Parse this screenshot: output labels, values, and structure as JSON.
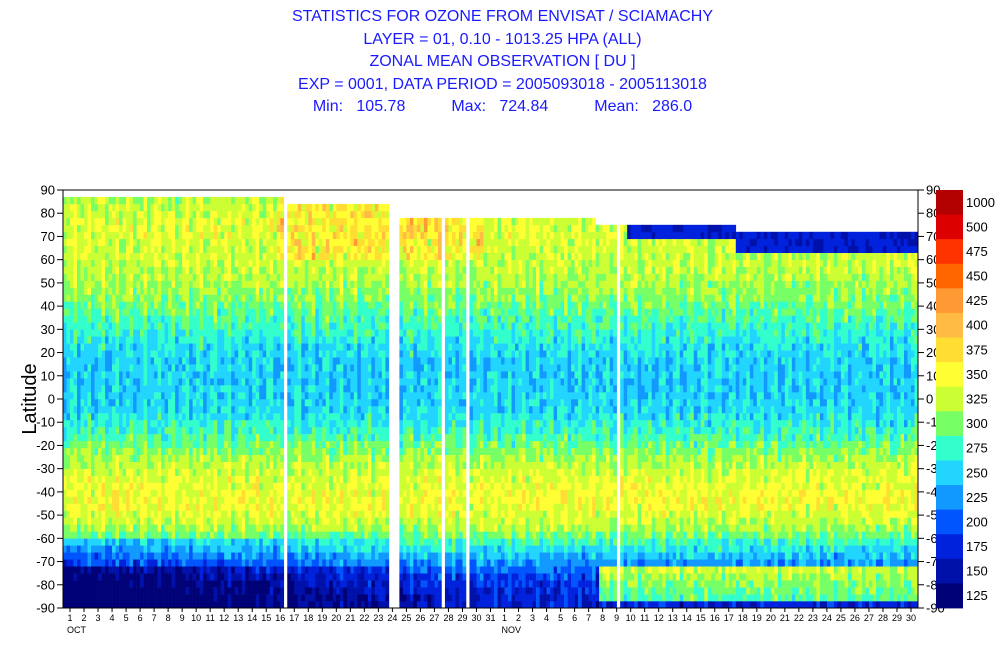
{
  "titles": {
    "line1": "STATISTICS FOR OZONE FROM ENVISAT / SCIAMACHY",
    "line2": "LAYER = 01, 0.10 - 1013.25 HPA (ALL)",
    "line3": "ZONAL MEAN OBSERVATION [ DU ]",
    "line4": "EXP = 0001, DATA PERIOD = 2005093018 - 2005113018",
    "min_label": "Min:",
    "min_value": "105.78",
    "max_label": "Max:",
    "max_value": "724.84",
    "mean_label": "Mean:",
    "mean_value": "286.0"
  },
  "colors": {
    "title": "#1a1aff",
    "weekend_tick": "#ff0000"
  },
  "chart_data": {
    "type": "heatmap",
    "ylabel": "Latitude",
    "ylim": [
      -90,
      90
    ],
    "yticks": [
      90,
      80,
      70,
      60,
      50,
      40,
      30,
      20,
      10,
      0,
      -10,
      -20,
      -30,
      -40,
      -50,
      -60,
      -70,
      -80,
      -90
    ],
    "x_days": [
      "1",
      "2",
      "3",
      "4",
      "5",
      "6",
      "7",
      "8",
      "9",
      "10",
      "11",
      "12",
      "13",
      "14",
      "15",
      "16",
      "17",
      "18",
      "19",
      "20",
      "21",
      "22",
      "23",
      "24",
      "25",
      "26",
      "27",
      "28",
      "29",
      "30",
      "31",
      "1",
      "2",
      "3",
      "4",
      "5",
      "6",
      "7",
      "8",
      "9",
      "10",
      "11",
      "12",
      "13",
      "14",
      "15",
      "16",
      "17",
      "18",
      "19",
      "20",
      "21",
      "22",
      "23",
      "24",
      "25",
      "26",
      "27",
      "28",
      "29",
      "30"
    ],
    "x_red_day_indexes": [
      1,
      8,
      15,
      22,
      29,
      36,
      43,
      50,
      57
    ],
    "month_labels": [
      {
        "label": "OCT",
        "day_index": 0
      },
      {
        "label": "NOV",
        "day_index": 31
      }
    ],
    "colorbar": {
      "labels": [
        "1000",
        "500",
        "475",
        "450",
        "425",
        "400",
        "375",
        "350",
        "325",
        "300",
        "275",
        "250",
        "225",
        "200",
        "175",
        "150",
        "125"
      ],
      "colors": [
        "#b30000",
        "#dd0000",
        "#ff3300",
        "#ff6600",
        "#ff9933",
        "#ffbb44",
        "#ffdd33",
        "#ffff33",
        "#ccff33",
        "#77ff66",
        "#33ffcc",
        "#22d5ff",
        "#1199ff",
        "#0055ff",
        "#0022dd",
        "#0011aa",
        "#000077"
      ]
    },
    "zonal_profile": [
      {
        "lat": -85,
        "value": 160
      },
      {
        "lat": -75,
        "value": 190
      },
      {
        "lat": -65,
        "value": 250
      },
      {
        "lat": -55,
        "value": 310
      },
      {
        "lat": -45,
        "value": 340
      },
      {
        "lat": -35,
        "value": 330
      },
      {
        "lat": -25,
        "value": 305
      },
      {
        "lat": -15,
        "value": 270
      },
      {
        "lat": -5,
        "value": 245
      },
      {
        "lat": 5,
        "value": 240
      },
      {
        "lat": 15,
        "value": 240
      },
      {
        "lat": 25,
        "value": 255
      },
      {
        "lat": 35,
        "value": 275
      },
      {
        "lat": 45,
        "value": 300
      },
      {
        "lat": 55,
        "value": 315
      },
      {
        "lat": 65,
        "value": 320
      },
      {
        "lat": 75,
        "value": 330
      },
      {
        "lat": 85,
        "value": 310
      }
    ]
  }
}
